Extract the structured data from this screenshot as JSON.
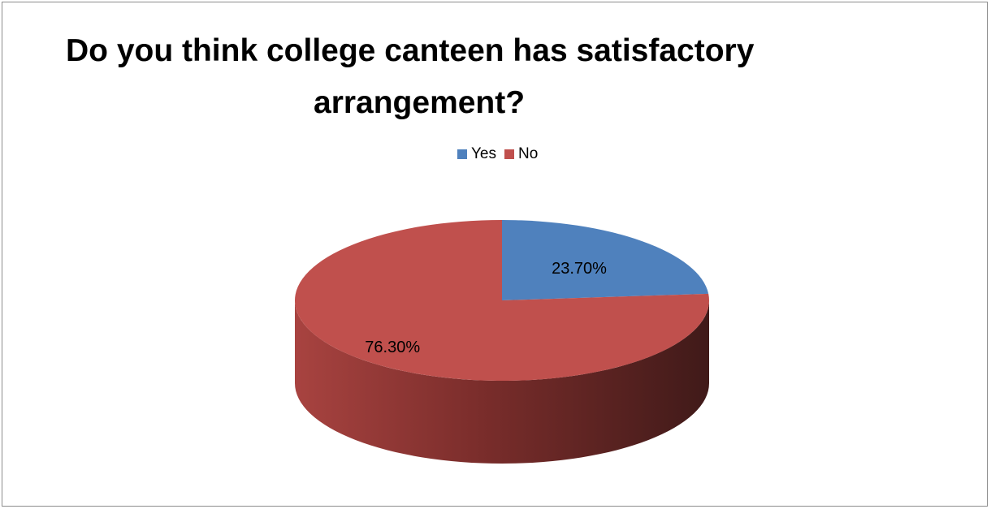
{
  "chart_data": {
    "type": "pie",
    "title_lines": [
      "Do you think college canteen has satisfactory",
      "arrangement?"
    ],
    "legend_position": "top",
    "slices": [
      {
        "name": "Yes",
        "value": 23.7,
        "label": "23.70%",
        "color": "#4f81bd"
      },
      {
        "name": "No",
        "value": 76.3,
        "label": "76.30%",
        "color": "#c0504d"
      }
    ],
    "three_d": true
  }
}
